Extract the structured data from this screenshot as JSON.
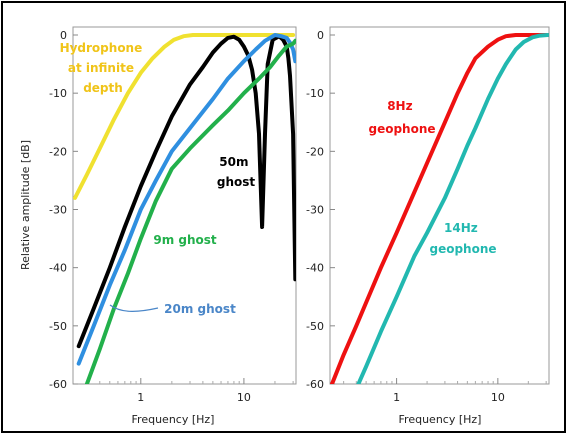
{
  "chart_data": [
    {
      "type": "line",
      "xlabel": "Frequency [Hz]",
      "ylabel": "Relative amplitude [dB]",
      "xscale": "log",
      "xlim": [
        0.22,
        32
      ],
      "ylim": [
        -60,
        2
      ],
      "yticks": [
        "0",
        "-10",
        "-20",
        "-30",
        "-40",
        "-50",
        "-60"
      ],
      "xticks": [
        "1",
        "10"
      ],
      "grid": false,
      "series": [
        {
          "color": "#f0e130",
          "x": [
            0.23,
            0.3,
            0.4,
            0.55,
            0.75,
            1.0,
            1.3,
            1.7,
            2.1,
            2.6,
            3.2,
            5,
            10,
            30
          ],
          "y": [
            -28,
            -24,
            -19.5,
            -14.5,
            -10,
            -6.5,
            -4,
            -2,
            -0.8,
            -0.2,
            0,
            0,
            0,
            0
          ]
        },
        {
          "color": "#000000",
          "x": [
            0.25,
            0.35,
            0.5,
            0.7,
            1.0,
            1.4,
            2,
            3,
            4,
            5,
            6,
            7,
            8,
            9,
            10,
            11,
            12,
            13,
            14,
            15,
            16,
            17,
            19,
            22,
            24,
            26,
            27,
            28,
            30,
            31.5
          ],
          "y": [
            -53.5,
            -47,
            -40,
            -33,
            -26,
            -20,
            -14,
            -8.5,
            -5.5,
            -3,
            -1.5,
            -0.5,
            -0.3,
            -0.8,
            -2,
            -3.5,
            -6,
            -10,
            -17,
            -33,
            -17,
            -5,
            -0.8,
            -0.2,
            -0.8,
            -2,
            -4,
            -7,
            -17,
            -42
          ]
        },
        {
          "color": "#2f8fe0",
          "x": [
            0.25,
            0.35,
            0.5,
            0.7,
            1.0,
            1.4,
            2,
            3,
            5,
            7,
            10,
            13,
            16,
            20,
            23,
            26,
            28,
            30,
            31.5
          ],
          "y": [
            -56.5,
            -50,
            -43,
            -37,
            -30,
            -25,
            -20,
            -16,
            -11,
            -7.5,
            -4.5,
            -2.5,
            -1,
            0,
            -0.2,
            -0.5,
            -1.3,
            -2.5,
            -4.5
          ]
        },
        {
          "color": "#22b04b",
          "x": [
            0.3,
            0.4,
            0.55,
            0.75,
            1.0,
            1.4,
            2,
            3,
            5,
            7,
            10,
            14,
            18,
            22,
            26,
            30,
            31.5
          ],
          "y": [
            -60,
            -54,
            -47,
            -41,
            -35,
            -28.5,
            -23,
            -19.5,
            -15.5,
            -13,
            -10,
            -7.5,
            -5.5,
            -3.5,
            -2,
            -1.5,
            -1
          ]
        }
      ],
      "annotations": [
        {
          "lines": [
            "Hydrophone",
            "at infinite",
            "depth"
          ],
          "color": "#f0c419"
        },
        {
          "lines": [
            "50m",
            "ghost"
          ],
          "color": "#000000"
        },
        {
          "lines": [
            "9m ghost"
          ],
          "color": "#22b04b"
        },
        {
          "lines": [
            "20m ghost"
          ],
          "color": "#4a86c8"
        }
      ]
    },
    {
      "type": "line",
      "xlabel": "Frequency [Hz]",
      "xscale": "log",
      "xlim": [
        0.22,
        32
      ],
      "ylim": [
        -60,
        2
      ],
      "yticks": [
        "0",
        "-10",
        "-20",
        "-30",
        "-40",
        "-50",
        "-60"
      ],
      "xticks": [
        "1",
        "10"
      ],
      "grid": false,
      "series": [
        {
          "color": "#ee1111",
          "x": [
            0.23,
            0.3,
            0.4,
            0.5,
            0.7,
            1.0,
            1.5,
            2,
            3,
            4,
            5,
            6,
            8,
            10,
            12,
            15,
            20,
            25,
            31
          ],
          "y": [
            -60,
            -55,
            -50,
            -46,
            -40,
            -34,
            -27,
            -22,
            -15,
            -10,
            -6.5,
            -4,
            -2,
            -0.8,
            -0.2,
            0,
            0,
            0,
            0
          ]
        },
        {
          "color": "#22b8b0",
          "x": [
            0.42,
            0.5,
            0.7,
            1.0,
            1.5,
            2,
            3,
            4,
            5,
            6,
            8,
            10,
            12,
            15,
            18,
            22,
            26,
            31
          ],
          "y": [
            -60,
            -57,
            -51,
            -45,
            -38,
            -34,
            -28,
            -23,
            -19,
            -16,
            -11,
            -7.5,
            -5,
            -2.5,
            -1.2,
            -0.4,
            -0.1,
            0
          ]
        }
      ],
      "annotations": [
        {
          "lines": [
            "8Hz",
            "geophone"
          ],
          "color": "#ee1111"
        },
        {
          "lines": [
            "14Hz",
            "geophone"
          ],
          "color": "#22b8b0"
        }
      ]
    }
  ]
}
